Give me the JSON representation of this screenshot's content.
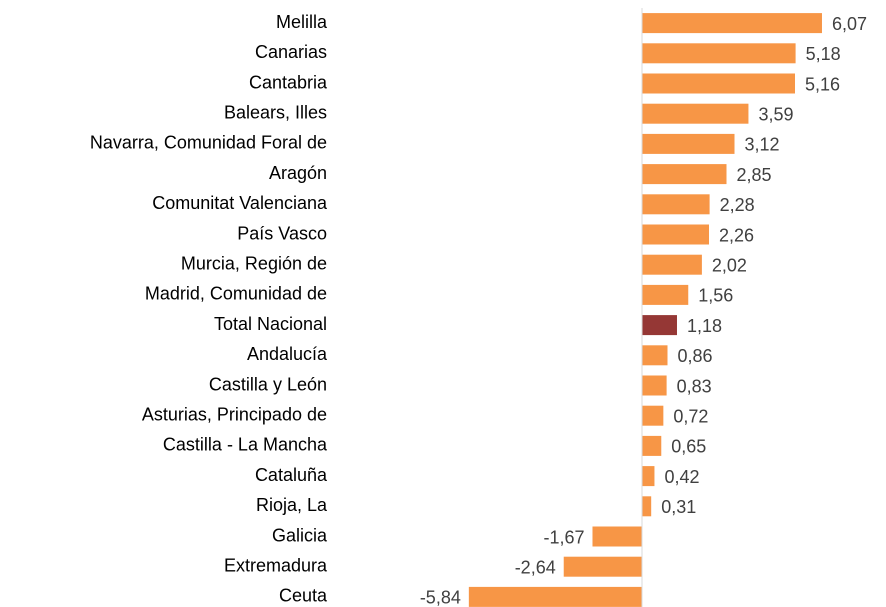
{
  "chart_data": {
    "type": "barh",
    "categories": [
      "Melilla",
      "Canarias",
      "Cantabria",
      "Balears, Illes",
      "Navarra, Comunidad Foral de",
      "Aragón",
      "Comunitat Valenciana",
      "País Vasco",
      "Murcia, Región de",
      "Madrid, Comunidad de",
      "Total Nacional",
      "Andalucía",
      "Castilla y León",
      "Asturias, Principado de",
      "Castilla - La Mancha",
      "Cataluña",
      "Rioja, La",
      "Galicia",
      "Extremadura",
      "Ceuta"
    ],
    "values": [
      6.07,
      5.18,
      5.16,
      3.59,
      3.12,
      2.85,
      2.28,
      2.26,
      2.02,
      1.56,
      1.18,
      0.86,
      0.83,
      0.72,
      0.65,
      0.42,
      0.31,
      -1.67,
      -2.64,
      -5.84
    ],
    "value_labels": [
      "6,07",
      "5,18",
      "5,16",
      "3,59",
      "3,12",
      "2,85",
      "2,28",
      "2,26",
      "2,02",
      "1,56",
      "1,18",
      "0,86",
      "0,83",
      "0,72",
      "0,65",
      "0,42",
      "0,31",
      "-1,67",
      "-2,64",
      "-5,84"
    ],
    "colors": [
      "#f79646",
      "#f79646",
      "#f79646",
      "#f79646",
      "#f79646",
      "#f79646",
      "#f79646",
      "#f79646",
      "#f79646",
      "#f79646",
      "#953735",
      "#f79646",
      "#f79646",
      "#f79646",
      "#f79646",
      "#f79646",
      "#f79646",
      "#f79646",
      "#f79646",
      "#f79646"
    ]
  }
}
